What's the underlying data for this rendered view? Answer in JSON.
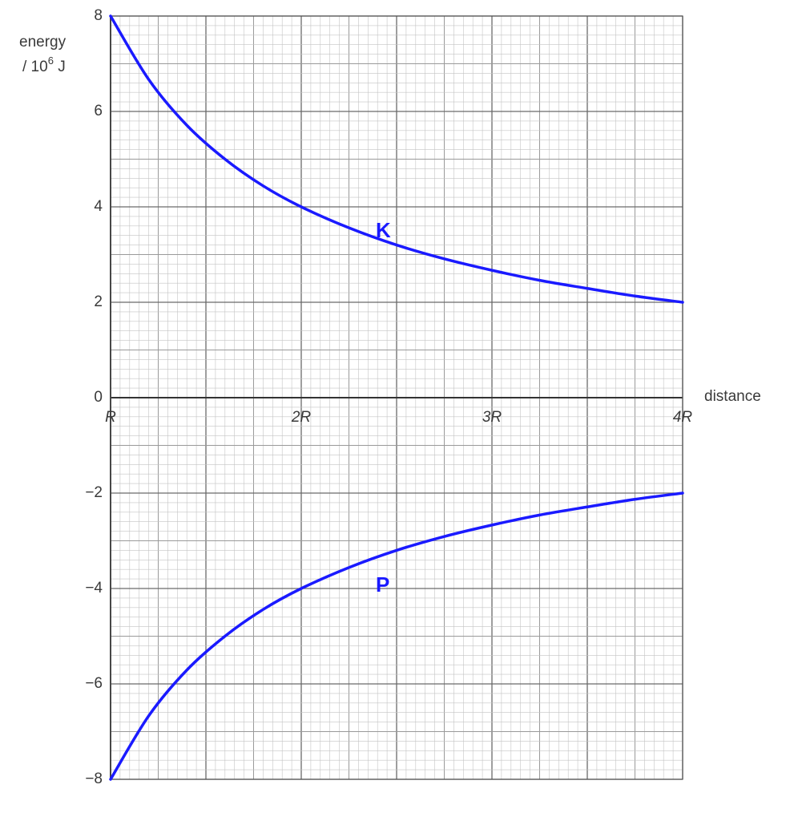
{
  "chart_data": {
    "type": "line",
    "ylabel_line1": "energy",
    "ylabel_unit_prefix": "/ 10",
    "ylabel_unit_exp": "6",
    "ylabel_unit_suffix": " J",
    "xlabel": "distance",
    "xlim": [
      1,
      4
    ],
    "ylim": [
      -8,
      8
    ],
    "grid": true,
    "y_ticks": [
      {
        "value": 8,
        "label": "8"
      },
      {
        "value": 6,
        "label": "6"
      },
      {
        "value": 4,
        "label": "4"
      },
      {
        "value": 2,
        "label": "2"
      },
      {
        "value": 0,
        "label": "0"
      },
      {
        "value": -2,
        "label": "−2"
      },
      {
        "value": -4,
        "label": "−4"
      },
      {
        "value": -6,
        "label": "−6"
      },
      {
        "value": -8,
        "label": "−8"
      }
    ],
    "x_ticks": [
      {
        "value": 1,
        "label": "R"
      },
      {
        "value": 2,
        "label": "2R"
      },
      {
        "value": 3,
        "label": "3R"
      },
      {
        "value": 4,
        "label": "4R"
      }
    ],
    "series": [
      {
        "name": "K",
        "color": "#1a1aff",
        "x": [
          1.0,
          1.2,
          1.4,
          1.6,
          1.8,
          2.0,
          2.25,
          2.5,
          2.75,
          3.0,
          3.25,
          3.5,
          3.75,
          4.0
        ],
        "y": [
          8.0,
          6.67,
          5.71,
          5.0,
          4.44,
          4.0,
          3.56,
          3.2,
          2.91,
          2.67,
          2.46,
          2.29,
          2.13,
          2.0
        ]
      },
      {
        "name": "P",
        "color": "#1a1aff",
        "x": [
          1.0,
          1.2,
          1.4,
          1.6,
          1.8,
          2.0,
          2.25,
          2.5,
          2.75,
          3.0,
          3.25,
          3.5,
          3.75,
          4.0
        ],
        "y": [
          -8.0,
          -6.67,
          -5.71,
          -5.0,
          -4.44,
          -4.0,
          -3.56,
          -3.2,
          -2.91,
          -2.67,
          -2.46,
          -2.29,
          -2.13,
          -2.0
        ]
      }
    ]
  }
}
